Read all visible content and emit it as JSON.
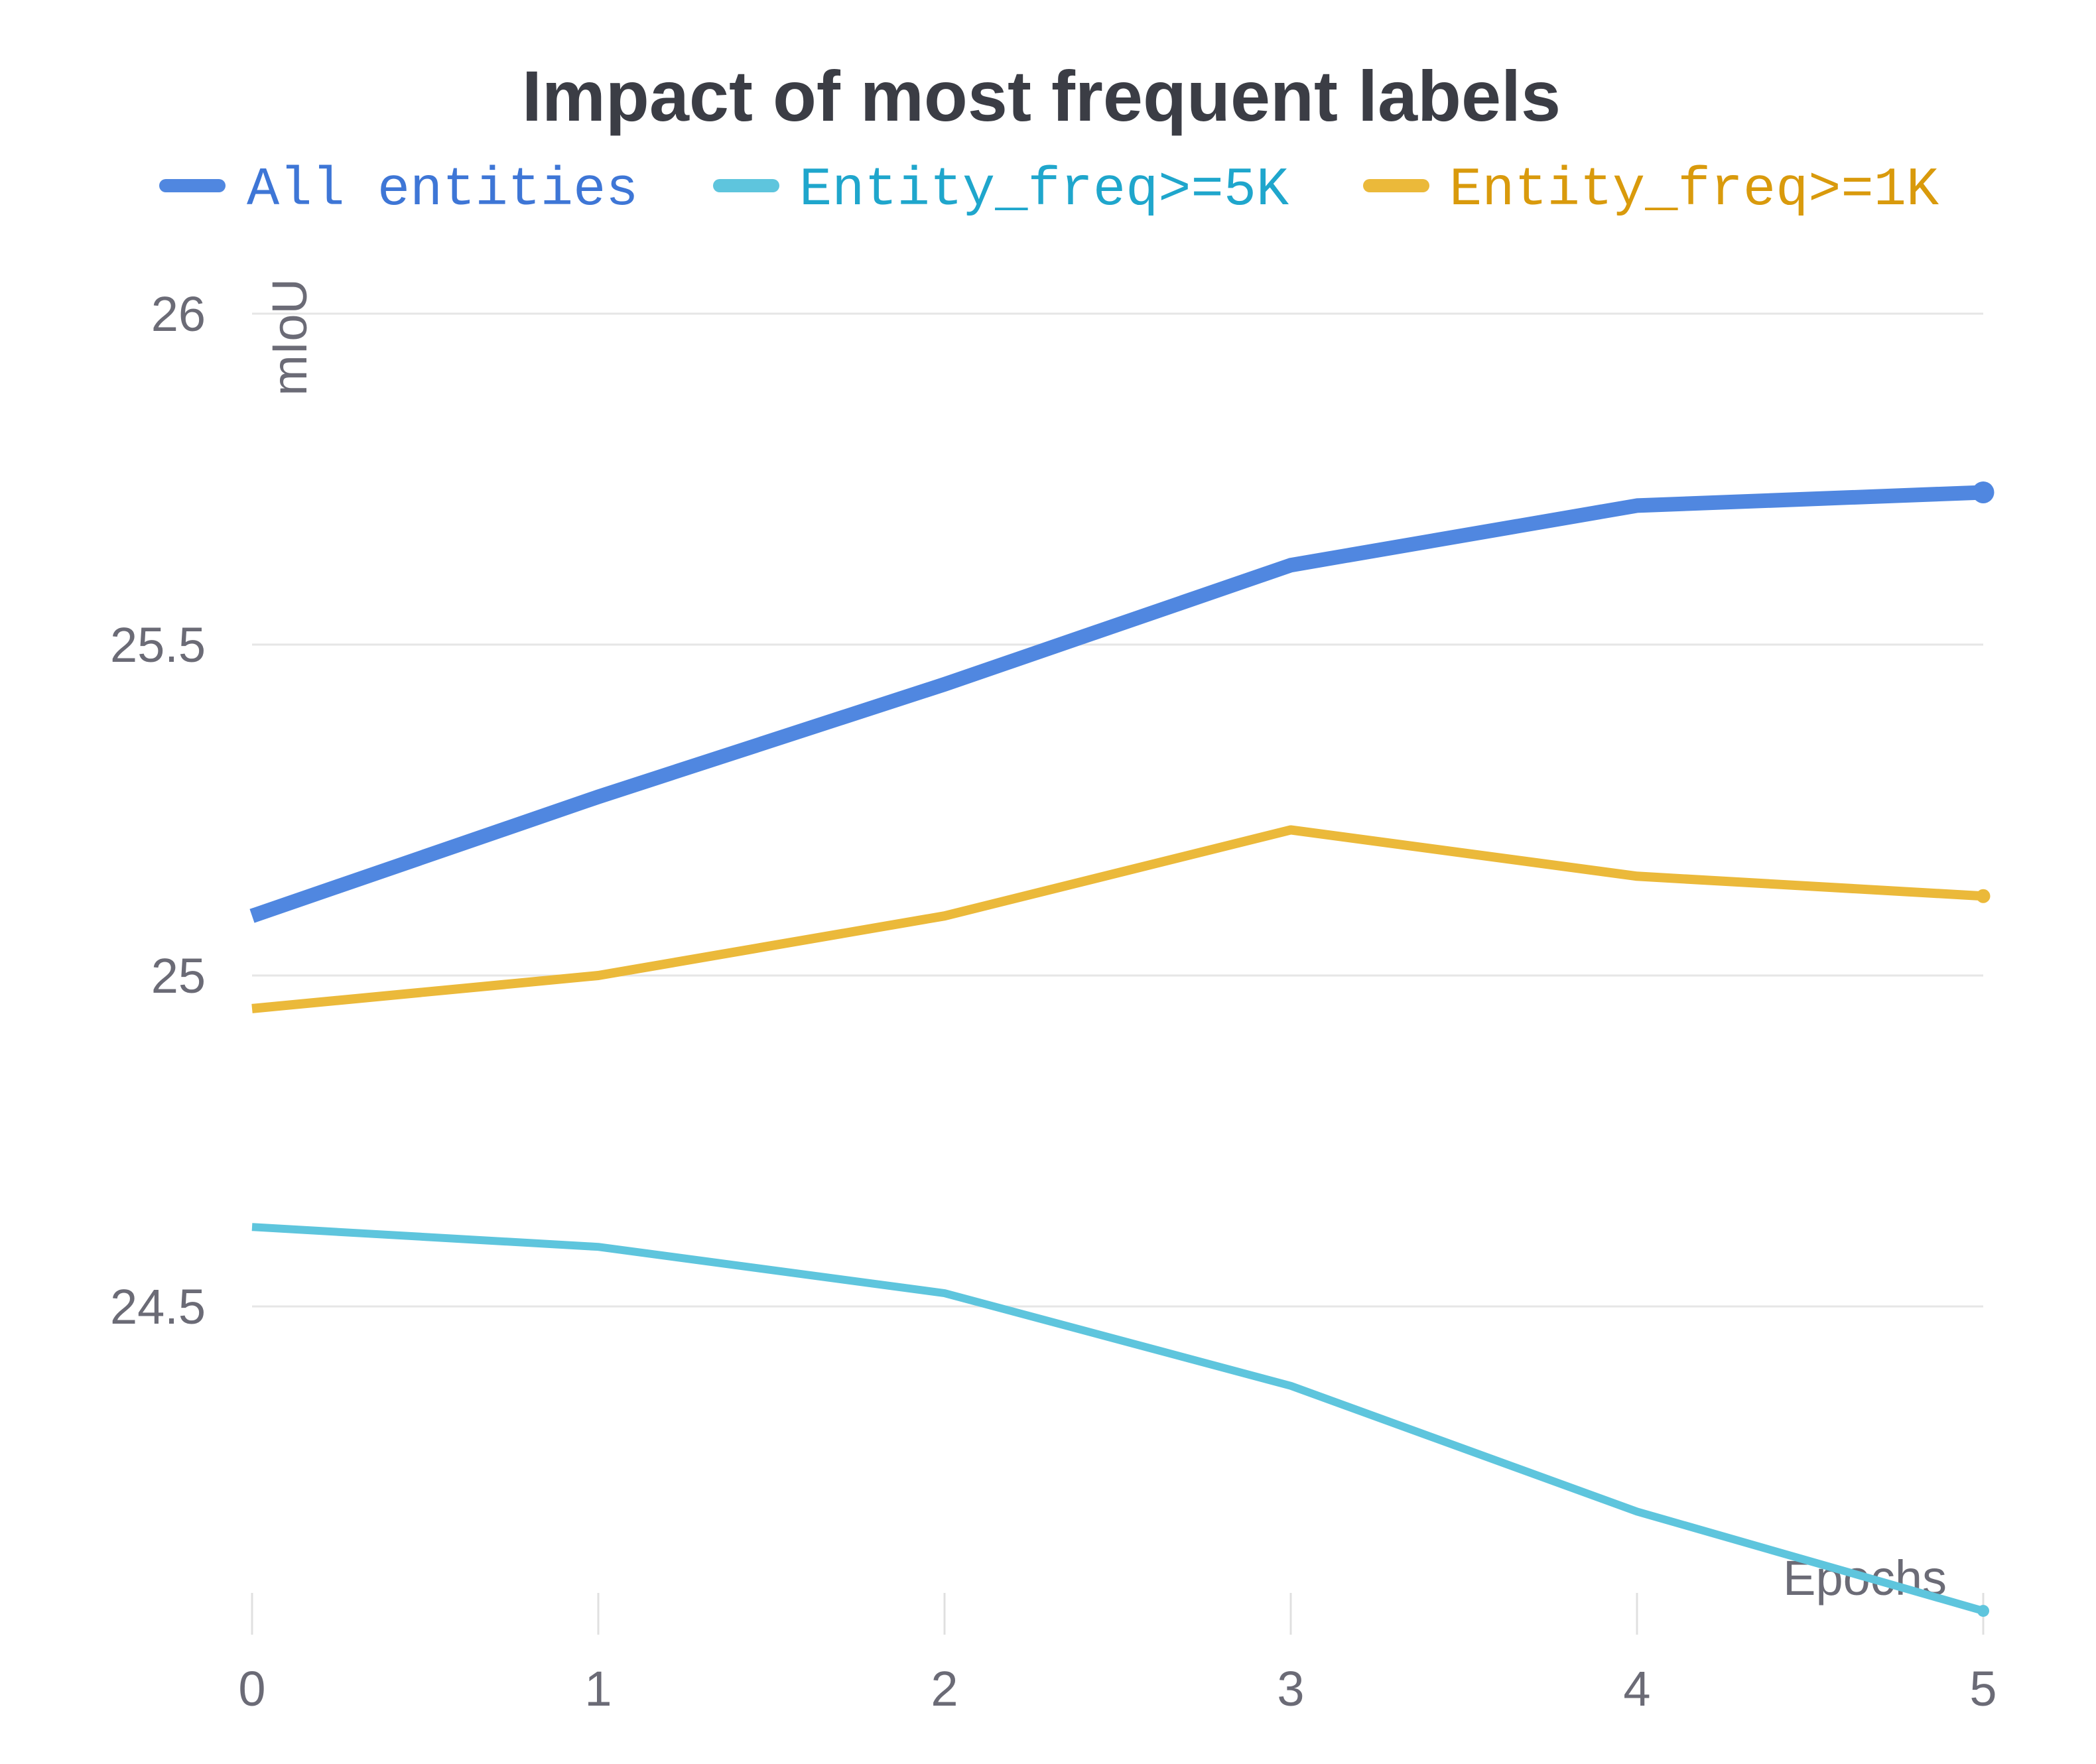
{
  "chart_data": {
    "type": "line",
    "title": "Impact of most frequent labels",
    "xlabel": "Epochs",
    "ylabel": "mIoU",
    "x": [
      0,
      1,
      2,
      3,
      4,
      5
    ],
    "xlim": [
      0,
      5
    ],
    "ylim": [
      24.08,
      26.04
    ],
    "yticks": [
      24.5,
      25,
      25.5,
      26
    ],
    "ytick_labels": [
      "24.5",
      "25",
      "25.5",
      "26"
    ],
    "xtick_labels": [
      "0",
      "1",
      "2",
      "3",
      "4",
      "5"
    ],
    "grid": "horizontal",
    "legend_position": "top",
    "series": [
      {
        "name": "All entities",
        "color": "#5087e0",
        "text_color": "#3e76d6",
        "values": [
          25.09,
          25.27,
          25.44,
          25.62,
          25.71,
          25.73
        ]
      },
      {
        "name": "Entity_freq>=5K",
        "color": "#5ec5dd",
        "text_color": "#1fa6cc",
        "values": [
          24.62,
          24.59,
          24.52,
          24.38,
          24.19,
          24.04
        ]
      },
      {
        "name": "Entity_freq>=1K",
        "color": "#ebb93a",
        "text_color": "#d99a0c",
        "values": [
          24.95,
          25.0,
          25.09,
          25.22,
          25.15,
          25.12
        ]
      }
    ]
  }
}
